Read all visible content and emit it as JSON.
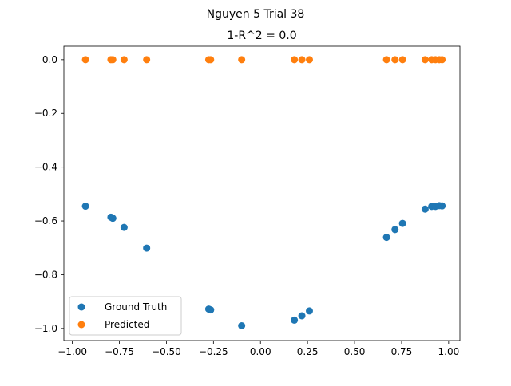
{
  "chart_data": {
    "type": "scatter",
    "suptitle": "Nguyen 5 Trial 38",
    "title": "1-R^2 = 0.0",
    "xlabel": "",
    "ylabel": "",
    "xlim": [
      -1.045,
      1.06
    ],
    "ylim": [
      -1.045,
      0.05
    ],
    "x_ticks": [
      -1.0,
      -0.75,
      -0.5,
      -0.25,
      0.0,
      0.25,
      0.5,
      0.75,
      1.0
    ],
    "x_tick_labels": [
      "−1.00",
      "−0.75",
      "−0.50",
      "−0.25",
      "0.00",
      "0.25",
      "0.50",
      "0.75",
      "1.00"
    ],
    "y_ticks": [
      0.0,
      -0.2,
      -0.4,
      -0.6,
      -0.8,
      -1.0
    ],
    "y_tick_labels": [
      "0.0",
      "−0.2",
      "−0.4",
      "−0.6",
      "−0.8",
      "−1.0"
    ],
    "grid": false,
    "legend_position": "lower-left",
    "series": [
      {
        "name": "Ground Truth",
        "color": "#1f77b4",
        "points": [
          [
            -0.93,
            -0.545
          ],
          [
            -0.795,
            -0.586
          ],
          [
            -0.785,
            -0.59
          ],
          [
            -0.725,
            -0.624
          ],
          [
            -0.605,
            -0.701
          ],
          [
            -0.275,
            -0.928
          ],
          [
            -0.265,
            -0.931
          ],
          [
            -0.1,
            -0.99
          ],
          [
            0.18,
            -0.969
          ],
          [
            0.22,
            -0.953
          ],
          [
            0.26,
            -0.935
          ],
          [
            0.67,
            -0.661
          ],
          [
            0.715,
            -0.632
          ],
          [
            0.755,
            -0.609
          ],
          [
            0.875,
            -0.556
          ],
          [
            0.91,
            -0.546
          ],
          [
            0.93,
            -0.546
          ],
          [
            0.95,
            -0.543
          ],
          [
            0.965,
            -0.544
          ]
        ]
      },
      {
        "name": "Predicted",
        "color": "#ff7f0e",
        "points": [
          [
            -0.93,
            0.0
          ],
          [
            -0.795,
            0.0
          ],
          [
            -0.785,
            0.0
          ],
          [
            -0.725,
            0.0
          ],
          [
            -0.605,
            0.0
          ],
          [
            -0.275,
            0.0
          ],
          [
            -0.265,
            0.0
          ],
          [
            -0.1,
            0.0
          ],
          [
            0.18,
            0.0
          ],
          [
            0.22,
            0.0
          ],
          [
            0.26,
            0.0
          ],
          [
            0.67,
            0.0
          ],
          [
            0.715,
            0.0
          ],
          [
            0.755,
            0.0
          ],
          [
            0.875,
            0.0
          ],
          [
            0.91,
            0.0
          ],
          [
            0.93,
            0.0
          ],
          [
            0.95,
            0.0
          ],
          [
            0.965,
            0.0
          ]
        ]
      }
    ]
  }
}
